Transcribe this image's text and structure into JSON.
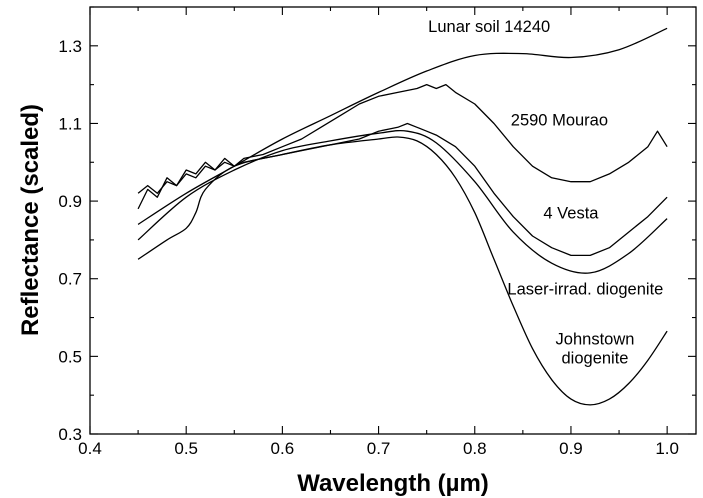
{
  "chart_data": {
    "type": "line",
    "title": "",
    "xlabel": "Wavelength (µm)",
    "ylabel": "Reflectance (scaled)",
    "xlim": [
      0.4,
      1.03
    ],
    "ylim": [
      0.3,
      1.4
    ],
    "xticks": [
      0.4,
      0.5,
      0.6,
      0.7,
      0.8,
      0.9,
      1.0
    ],
    "xtick_labels": [
      "0.4",
      "0.5",
      "0.6",
      "0.7",
      "0.8",
      "0.9",
      "1.0"
    ],
    "yticks": [
      0.3,
      0.5,
      0.7,
      0.9,
      1.1,
      1.3
    ],
    "ytick_labels": [
      "0.3",
      "0.5",
      "0.7",
      "0.9",
      "1.1",
      "1.3"
    ],
    "grid": false,
    "legend": "none",
    "series": [
      {
        "label": "Lunar soil 14240",
        "smooth": true,
        "x": [
          0.45,
          0.5,
          0.55,
          0.6,
          0.65,
          0.7,
          0.75,
          0.8,
          0.85,
          0.9,
          0.95,
          1.0
        ],
        "y": [
          0.84,
          0.92,
          0.99,
          1.06,
          1.12,
          1.18,
          1.235,
          1.275,
          1.28,
          1.27,
          1.29,
          1.345
        ]
      },
      {
        "label": "2590 Mourao",
        "smooth": false,
        "x": [
          0.45,
          0.46,
          0.47,
          0.48,
          0.49,
          0.5,
          0.51,
          0.52,
          0.53,
          0.54,
          0.55,
          0.56,
          0.58,
          0.6,
          0.62,
          0.64,
          0.66,
          0.68,
          0.7,
          0.72,
          0.74,
          0.75,
          0.76,
          0.77,
          0.78,
          0.8,
          0.82,
          0.84,
          0.86,
          0.88,
          0.9,
          0.92,
          0.94,
          0.96,
          0.98,
          0.99,
          1.0
        ],
        "y": [
          0.88,
          0.93,
          0.91,
          0.96,
          0.94,
          0.98,
          0.97,
          1.0,
          0.98,
          1.01,
          0.99,
          1.01,
          1.02,
          1.04,
          1.06,
          1.09,
          1.12,
          1.15,
          1.17,
          1.18,
          1.19,
          1.2,
          1.19,
          1.2,
          1.18,
          1.15,
          1.1,
          1.04,
          0.99,
          0.96,
          0.95,
          0.95,
          0.97,
          1.0,
          1.04,
          1.08,
          1.04
        ]
      },
      {
        "label": "4 Vesta",
        "smooth": false,
        "x": [
          0.45,
          0.46,
          0.47,
          0.48,
          0.49,
          0.5,
          0.51,
          0.52,
          0.53,
          0.54,
          0.55,
          0.56,
          0.58,
          0.6,
          0.62,
          0.64,
          0.66,
          0.68,
          0.7,
          0.72,
          0.73,
          0.74,
          0.75,
          0.76,
          0.78,
          0.8,
          0.82,
          0.84,
          0.86,
          0.88,
          0.9,
          0.92,
          0.94,
          0.96,
          0.98,
          1.0
        ],
        "y": [
          0.92,
          0.94,
          0.92,
          0.95,
          0.94,
          0.97,
          0.96,
          0.99,
          0.98,
          1.0,
          0.99,
          1.0,
          1.01,
          1.02,
          1.03,
          1.04,
          1.05,
          1.06,
          1.08,
          1.09,
          1.1,
          1.09,
          1.08,
          1.07,
          1.04,
          0.99,
          0.92,
          0.86,
          0.81,
          0.78,
          0.76,
          0.76,
          0.78,
          0.82,
          0.86,
          0.91
        ]
      },
      {
        "label": "Laser-irrad. diogenite",
        "smooth": true,
        "x": [
          0.45,
          0.5,
          0.55,
          0.6,
          0.65,
          0.7,
          0.73,
          0.76,
          0.8,
          0.84,
          0.88,
          0.92,
          0.96,
          1.0
        ],
        "y": [
          0.8,
          0.91,
          0.98,
          1.03,
          1.055,
          1.075,
          1.08,
          1.05,
          0.95,
          0.82,
          0.74,
          0.715,
          0.765,
          0.855
        ]
      },
      {
        "label": "Johnstown diogenite",
        "smooth": true,
        "x": [
          0.45,
          0.48,
          0.5,
          0.51,
          0.52,
          0.55,
          0.6,
          0.65,
          0.7,
          0.72,
          0.74,
          0.76,
          0.78,
          0.8,
          0.82,
          0.84,
          0.86,
          0.88,
          0.9,
          0.92,
          0.94,
          0.96,
          0.98,
          1.0
        ],
        "y": [
          0.75,
          0.8,
          0.83,
          0.87,
          0.93,
          0.99,
          1.02,
          1.045,
          1.06,
          1.065,
          1.055,
          1.02,
          0.96,
          0.87,
          0.75,
          0.63,
          0.52,
          0.44,
          0.39,
          0.375,
          0.39,
          0.43,
          0.49,
          0.565
        ]
      }
    ],
    "annotations": [
      {
        "lines": [
          "Lunar soil 14240"
        ],
        "at": [
          0.815,
          1.335
        ]
      },
      {
        "lines": [
          "2590 Mourao"
        ],
        "at": [
          0.888,
          1.095
        ]
      },
      {
        "lines": [
          "4 Vesta"
        ],
        "at": [
          0.9,
          0.855
        ]
      },
      {
        "lines": [
          "Laser-irrad. diogenite"
        ],
        "at": [
          0.915,
          0.66
        ]
      },
      {
        "lines": [
          "Johnstown",
          "diogenite"
        ],
        "at": [
          0.925,
          0.53
        ]
      }
    ]
  }
}
